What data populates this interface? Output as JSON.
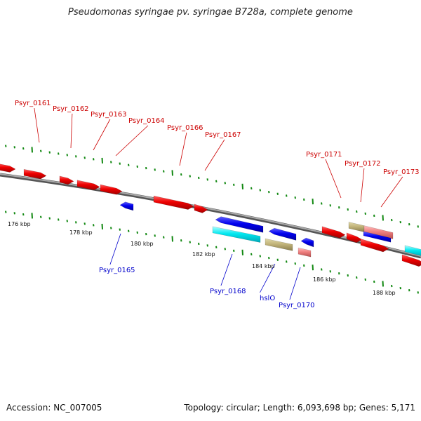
{
  "title": "Pseudomonas syringae pv. syringae B728a, complete genome",
  "footer": {
    "accession": "Accession: NC_007005",
    "summary": "Topology: circular; Length: 6,093,698 bp; Genes: 5,171"
  },
  "colors": {
    "forward_label": "#cc0000",
    "reverse_label": "#0000cc",
    "backbone": "#7d7d7d",
    "tick": "#118811"
  },
  "scale_labels": [
    "176 kbp",
    "178 kbp",
    "180 kbp",
    "182 kbp",
    "184 kbp",
    "186 kbp",
    "188 kbp"
  ],
  "genes": [
    {
      "name": "Psyr_0161",
      "strand": "forward",
      "label_color": "#cc0000"
    },
    {
      "name": "Psyr_0162",
      "strand": "forward",
      "label_color": "#cc0000"
    },
    {
      "name": "Psyr_0163",
      "strand": "forward",
      "label_color": "#cc0000"
    },
    {
      "name": "Psyr_0164",
      "strand": "forward",
      "label_color": "#cc0000"
    },
    {
      "name": "Psyr_0166",
      "strand": "forward",
      "label_color": "#cc0000"
    },
    {
      "name": "Psyr_0167",
      "strand": "forward",
      "label_color": "#cc0000"
    },
    {
      "name": "Psyr_0171",
      "strand": "forward",
      "label_color": "#cc0000"
    },
    {
      "name": "Psyr_0172",
      "strand": "forward",
      "label_color": "#cc0000"
    },
    {
      "name": "Psyr_0173",
      "strand": "forward",
      "label_color": "#cc0000"
    },
    {
      "name": "Psyr_0165",
      "strand": "reverse",
      "label_color": "#0000cc"
    },
    {
      "name": "Psyr_0168",
      "strand": "reverse",
      "label_color": "#0000cc"
    },
    {
      "name": "hslO",
      "strand": "reverse",
      "label_color": "#0000cc"
    },
    {
      "name": "Psyr_0170",
      "strand": "reverse",
      "label_color": "#0000cc"
    }
  ]
}
